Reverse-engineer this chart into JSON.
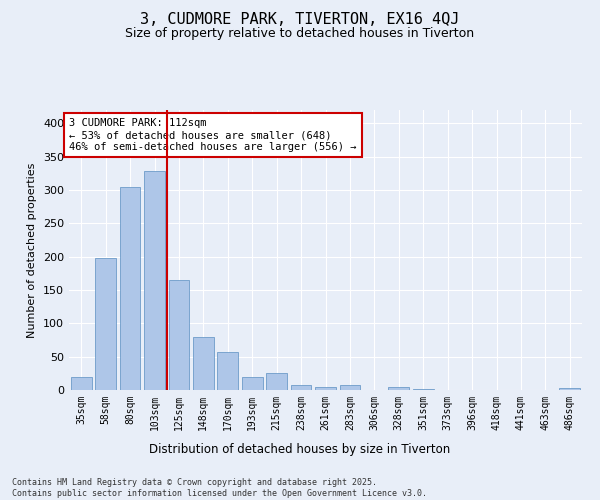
{
  "title_line1": "3, CUDMORE PARK, TIVERTON, EX16 4QJ",
  "title_line2": "Size of property relative to detached houses in Tiverton",
  "xlabel": "Distribution of detached houses by size in Tiverton",
  "ylabel": "Number of detached properties",
  "categories": [
    "35sqm",
    "58sqm",
    "80sqm",
    "103sqm",
    "125sqm",
    "148sqm",
    "170sqm",
    "193sqm",
    "215sqm",
    "238sqm",
    "261sqm",
    "283sqm",
    "306sqm",
    "328sqm",
    "351sqm",
    "373sqm",
    "396sqm",
    "418sqm",
    "441sqm",
    "463sqm",
    "486sqm"
  ],
  "values": [
    20,
    198,
    305,
    328,
    165,
    80,
    57,
    19,
    25,
    7,
    5,
    7,
    0,
    5,
    2,
    0,
    0,
    0,
    0,
    0,
    3
  ],
  "bar_color": "#aec6e8",
  "bar_edge_color": "#5a8fc2",
  "vline_color": "#cc0000",
  "annotation_text": "3 CUDMORE PARK: 112sqm\n← 53% of detached houses are smaller (648)\n46% of semi-detached houses are larger (556) →",
  "annotation_box_color": "#ffffff",
  "annotation_box_edge_color": "#cc0000",
  "ylim": [
    0,
    420
  ],
  "yticks": [
    0,
    50,
    100,
    150,
    200,
    250,
    300,
    350,
    400
  ],
  "bg_color": "#e8eef8",
  "footer_text": "Contains HM Land Registry data © Crown copyright and database right 2025.\nContains public sector information licensed under the Open Government Licence v3.0."
}
